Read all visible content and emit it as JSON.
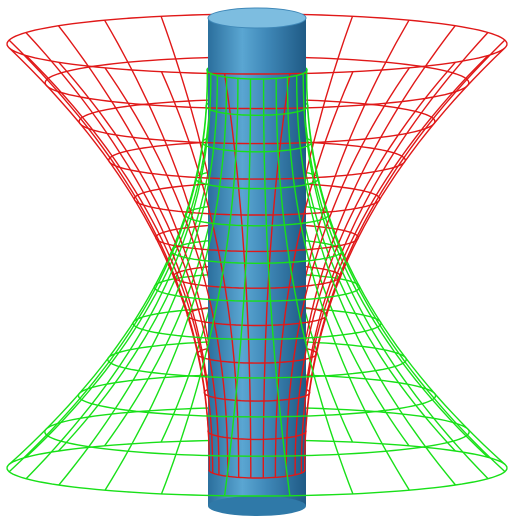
{
  "figure": {
    "background": "#ffffff",
    "top_surface_color": "#e01818",
    "bottom_surface_color": "#18e018",
    "cylinder_color": "#3f88b8",
    "cylinder_top_color": "#7dbde0",
    "top_surface_meridians": 24,
    "top_surface_rings": 11,
    "bottom_surface_meridians": 24,
    "bottom_surface_rings": 11
  }
}
